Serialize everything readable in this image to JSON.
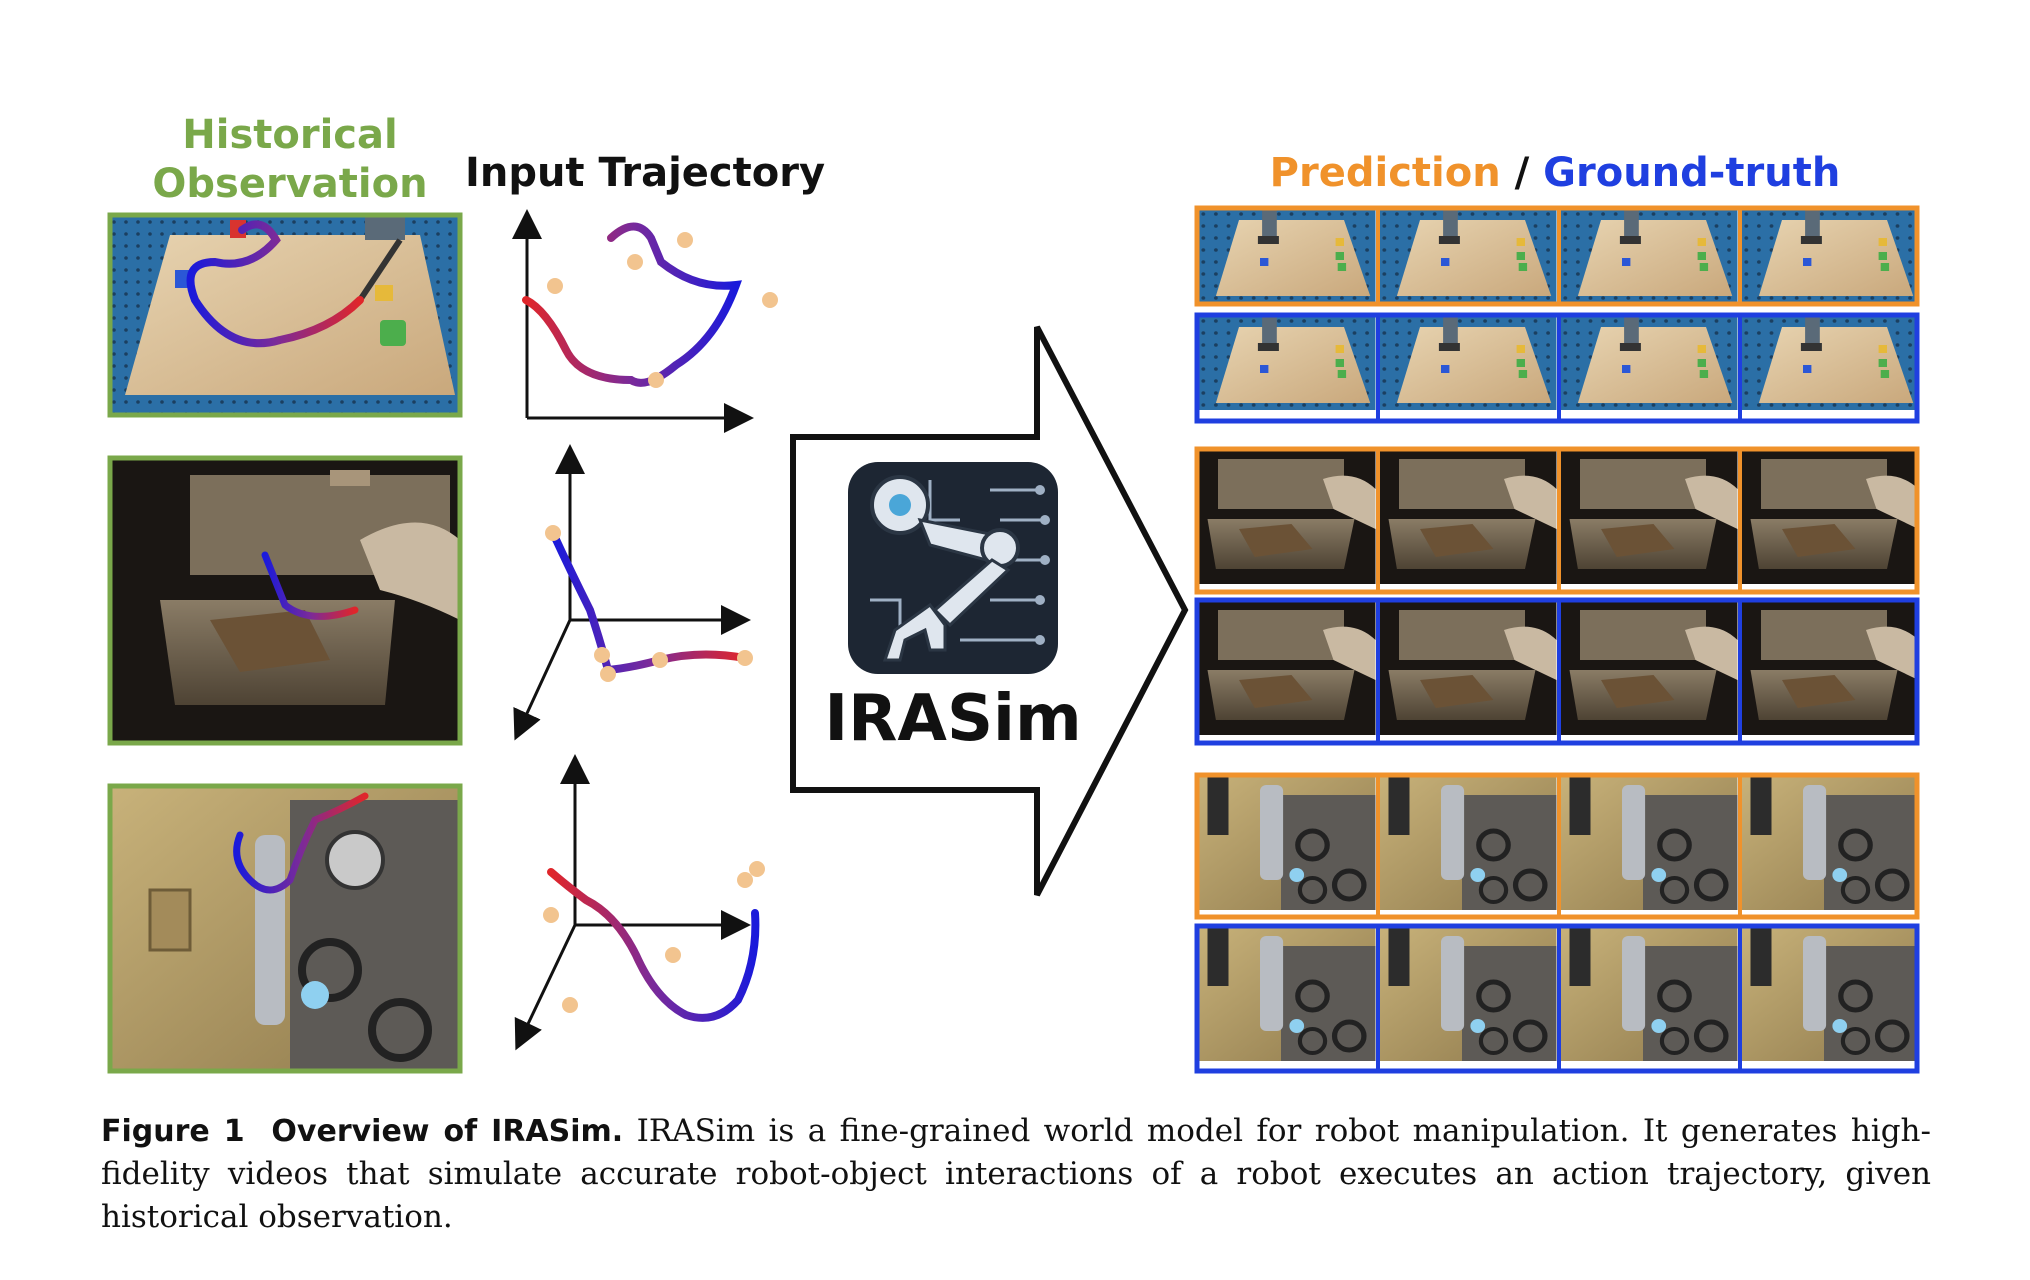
{
  "headers": {
    "historical_line1": "Historical",
    "historical_line2": "Observation",
    "input_trajectory": "Input Trajectory",
    "prediction": "Prediction",
    "separator": " / ",
    "ground_truth": "Ground-truth"
  },
  "model": {
    "name": "IRASim",
    "logo_icon": "robot-arm-circuit-icon"
  },
  "caption": {
    "label": "Figure 1",
    "title": "Overview of IRASim.",
    "text": "IRASim is a fine-grained world model for robot manipulation. It generates high-fidelity videos that simulate accurate robot-object interactions of a robot executes an action trajectory, given historical observation."
  },
  "colors": {
    "historical": "#7aa84a",
    "prediction": "#f0922b",
    "ground_truth": "#1f3fe0",
    "trajectory_start": "#1a1adb",
    "trajectory_end": "#e0262a",
    "waypoint": "#f2c48f"
  },
  "scenes": [
    {
      "name": "table-blocks",
      "prediction_frames": 4,
      "ground_truth_frames": 4
    },
    {
      "name": "drawer",
      "prediction_frames": 4,
      "ground_truth_frames": 4
    },
    {
      "name": "kitchen-stove",
      "prediction_frames": 4,
      "ground_truth_frames": 4
    }
  ]
}
